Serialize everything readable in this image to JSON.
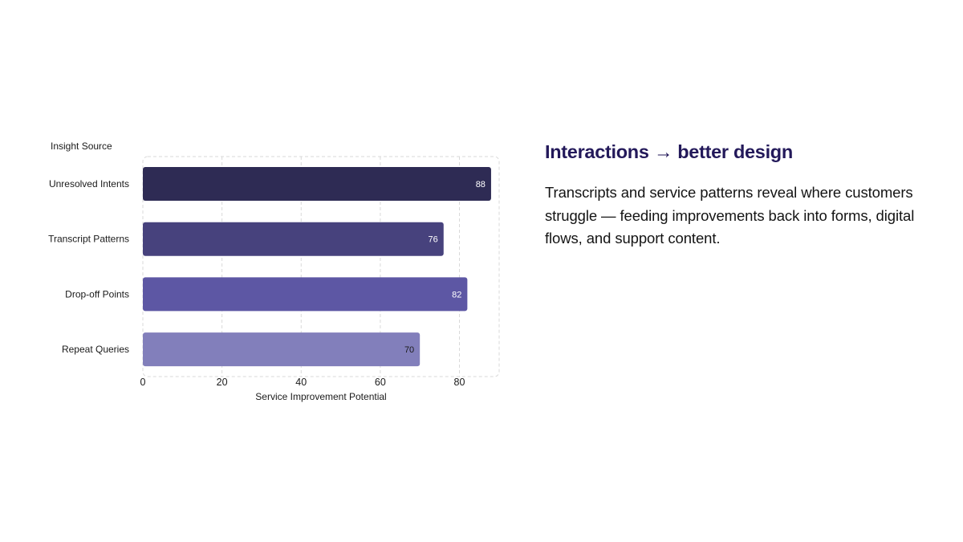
{
  "chart_data": {
    "type": "bar",
    "orientation": "horizontal",
    "categories": [
      "Unresolved Intents",
      "Transcript Patterns",
      "Drop-off Points",
      "Repeat Queries"
    ],
    "values": [
      88,
      76,
      82,
      70
    ],
    "value_labels": [
      "88",
      "76",
      "82",
      "70"
    ],
    "bar_colors": [
      "#2e2b54",
      "#47427d",
      "#5d57a4",
      "#827fbb"
    ],
    "value_label_colors": [
      "#ffffff",
      "#ffffff",
      "#ffffff",
      "#1a1a1a"
    ],
    "ylabel": "Insight Source",
    "xlabel": "Service Improvement Potential",
    "xlim": [
      0,
      90
    ],
    "xticks": [
      0,
      20,
      40,
      60,
      80
    ],
    "xtick_labels": [
      "0",
      "20",
      "40",
      "60",
      "80"
    ],
    "grid": true,
    "grid_style": "dashed"
  },
  "panel": {
    "headline": "Interactions → better design",
    "body": "Transcripts and service patterns reveal where customers struggle — feeding improvements back into forms, digital flows, and support content."
  },
  "colors": {
    "headline": "#23195a",
    "grid": "#d9d9d9"
  }
}
